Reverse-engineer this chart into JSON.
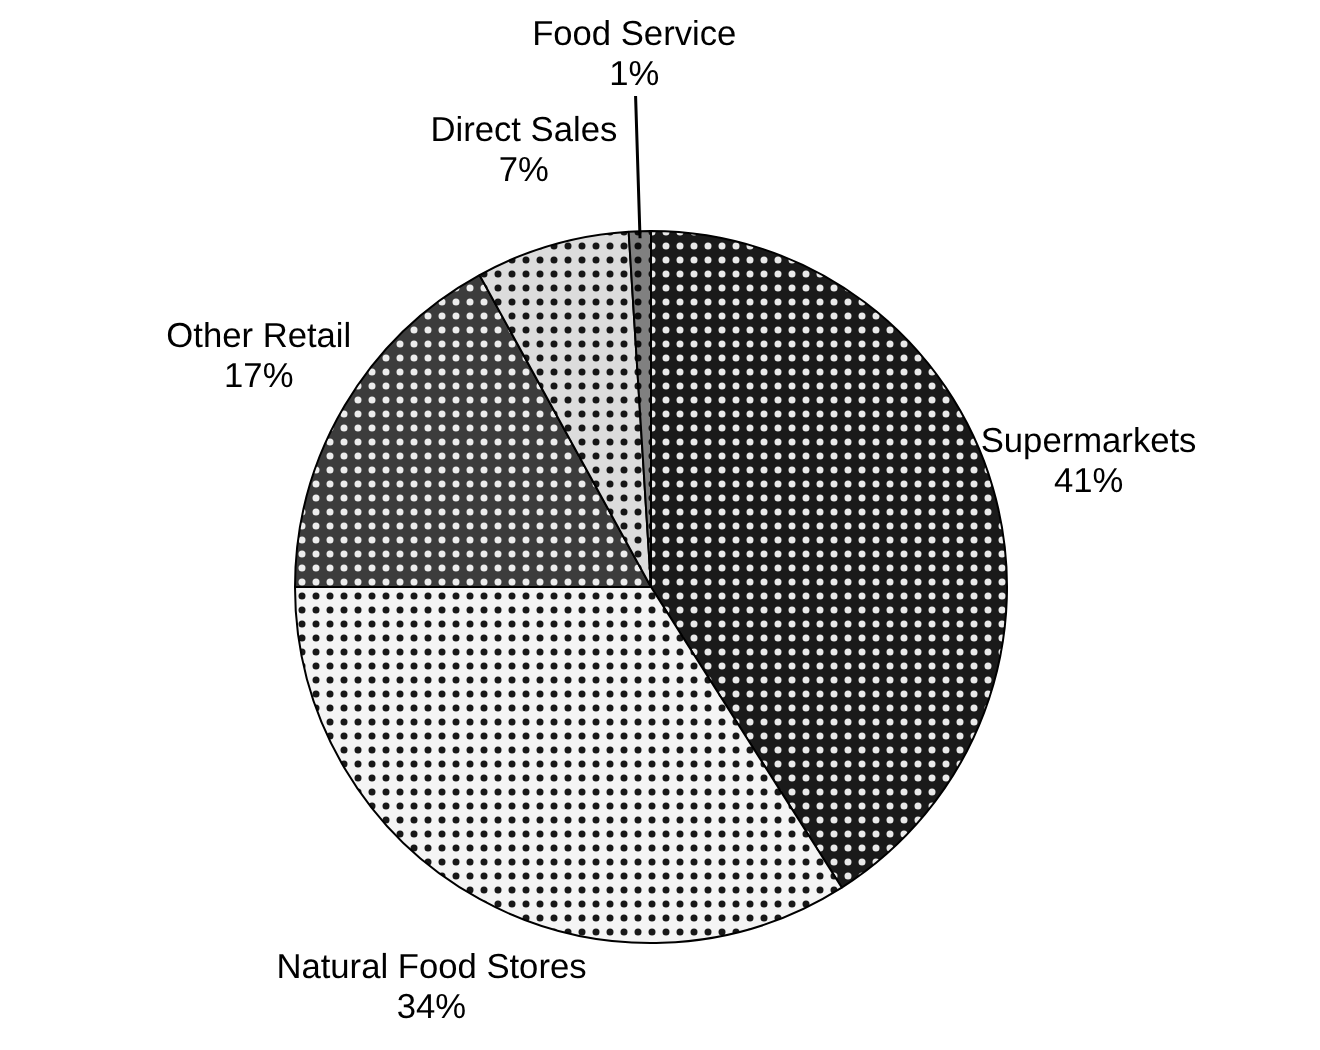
{
  "chart_data": {
    "type": "pie",
    "categories": [
      "Supermarkets",
      "Natural Food Stores",
      "Other Retail",
      "Direct Sales",
      "Food Service"
    ],
    "values": [
      41,
      34,
      17,
      7,
      1
    ],
    "value_labels": [
      "41%",
      "34%",
      "17%",
      "7%",
      "1%"
    ],
    "colors": [
      "#1a1a1a",
      "#f4f4f4",
      "#3c3c3c",
      "#dcdcdc",
      "#808080"
    ]
  }
}
